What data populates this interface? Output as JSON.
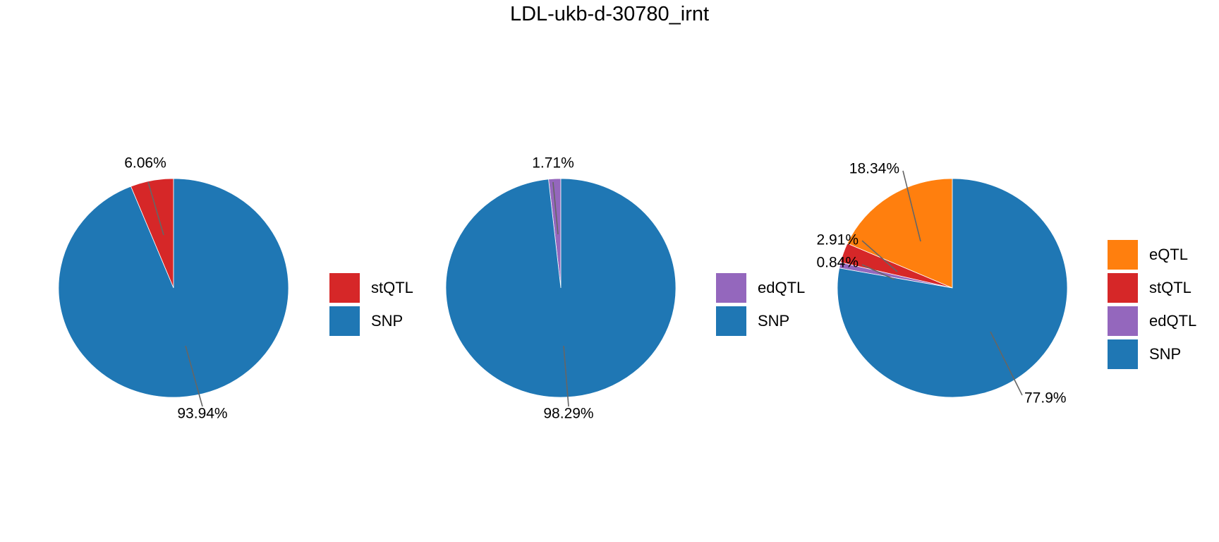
{
  "title": "LDL-ukb-d-30780_irnt",
  "chart_data": [
    {
      "type": "pie",
      "slices": [
        {
          "label": "stQTL",
          "value": 6.06,
          "display": "6.06%",
          "color": "#d62728"
        },
        {
          "label": "SNP",
          "value": 93.94,
          "display": "93.94%",
          "color": "#1f77b4"
        }
      ],
      "legend": [
        "stQTL",
        "SNP"
      ],
      "legend_position": "right"
    },
    {
      "type": "pie",
      "slices": [
        {
          "label": "edQTL",
          "value": 1.71,
          "display": "1.71%",
          "color": "#9467bd"
        },
        {
          "label": "SNP",
          "value": 98.29,
          "display": "98.29%",
          "color": "#1f77b4"
        }
      ],
      "legend": [
        "edQTL",
        "SNP"
      ],
      "legend_position": "right"
    },
    {
      "type": "pie",
      "slices": [
        {
          "label": "eQTL",
          "value": 18.34,
          "display": "18.34%",
          "color": "#ff7f0e"
        },
        {
          "label": "stQTL",
          "value": 2.91,
          "display": "2.91%",
          "color": "#d62728"
        },
        {
          "label": "edQTL",
          "value": 0.84,
          "display": "0.84%",
          "color": "#9467bd"
        },
        {
          "label": "SNP",
          "value": 77.9,
          "display": "77.9%",
          "color": "#1f77b4"
        }
      ],
      "legend": [
        "eQTL",
        "stQTL",
        "edQTL",
        "SNP"
      ],
      "legend_position": "right"
    }
  ]
}
